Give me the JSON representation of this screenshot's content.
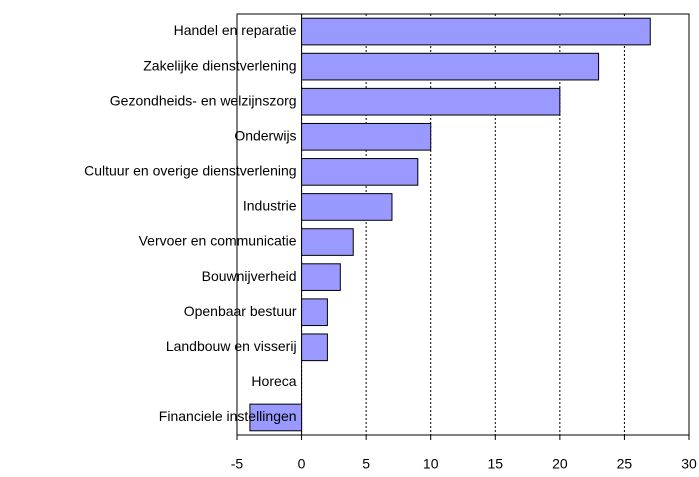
{
  "chart_data": {
    "type": "bar",
    "orientation": "horizontal",
    "categories": [
      "Handel en reparatie",
      "Zakelijke dienstverlening",
      "Gezondheids- en welzijnszorg",
      "Onderwijs",
      "Cultuur en overige dienstverlening",
      "Industrie",
      "Vervoer en communicatie",
      "Bouwnijverheid",
      "Openbaar bestuur",
      "Landbouw en visserij",
      "Horeca",
      "Financiele instellingen"
    ],
    "values": [
      27,
      23,
      20,
      10,
      9,
      7,
      4,
      3,
      2,
      2,
      0,
      -4
    ],
    "color": "#9999ff",
    "xlim": [
      -5,
      30
    ],
    "xticks": [
      -5,
      0,
      5,
      10,
      15,
      20,
      25,
      30
    ],
    "grid": true
  }
}
